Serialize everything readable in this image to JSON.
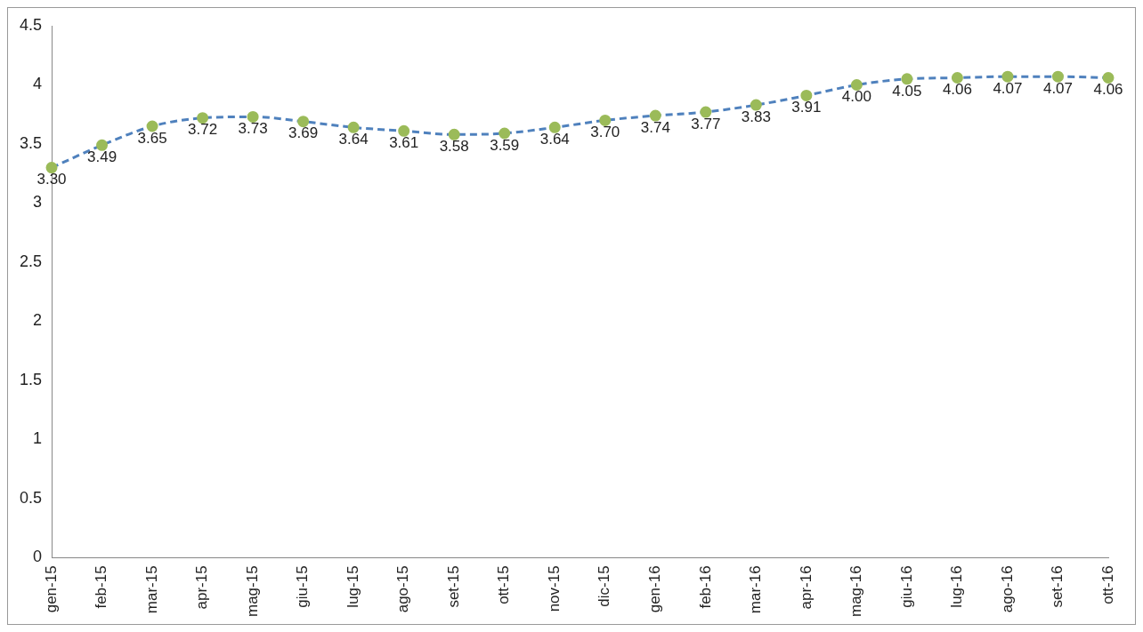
{
  "chart_data": {
    "type": "line",
    "categories": [
      "gen-15",
      "feb-15",
      "mar-15",
      "apr-15",
      "mag-15",
      "giu-15",
      "lug-15",
      "ago-15",
      "set-15",
      "ott-15",
      "nov-15",
      "dic-15",
      "gen-16",
      "feb-16",
      "mar-16",
      "apr-16",
      "mag-16",
      "giu-16",
      "lug-16",
      "ago-16",
      "set-16",
      "ott-16"
    ],
    "series": [
      {
        "color": "#4f81bd",
        "colors": [
          "#9bbb59",
          "#9bbb59",
          "#9bbb59",
          "#9bbb59",
          "#9bbb59",
          "#9bbb59",
          "#9bbb59",
          "#9bbb59",
          "#9bbb59",
          "#9bbb59",
          "#9bbb59",
          "#9bbb59",
          "#9bbb59",
          "#9bbb59",
          "#9bbb59",
          "#9bbb59",
          "#9bbb59",
          "#9bbb59",
          "#9bbb59",
          "#9bbb59",
          "#9bbb59",
          "#9bbb59"
        ],
        "values": [
          3.3,
          3.49,
          3.65,
          3.72,
          3.73,
          3.69,
          3.64,
          3.61,
          3.58,
          3.59,
          3.64,
          3.7,
          3.74,
          3.77,
          3.83,
          3.91,
          4.0,
          4.05,
          4.06,
          4.07,
          4.07,
          4.06
        ],
        "value_labels": [
          "3.30",
          "3.49",
          "3.65",
          "3.72",
          "3.73",
          "3.69",
          "3.64",
          "3.61",
          "3.58",
          "3.59",
          "3.64",
          "3.70",
          "3.74",
          "3.77",
          "3.83",
          "3.91",
          "4.00",
          "4.05",
          "4.06",
          "4.07",
          "4.07",
          "4.06"
        ]
      }
    ],
    "ylim": [
      0,
      4.5
    ],
    "yticks": [
      0,
      0.5,
      1,
      1.5,
      2,
      2.5,
      3,
      3.5,
      4,
      4.5
    ],
    "grid": false,
    "legend": false,
    "marker": "circle",
    "line_style": "dashed"
  }
}
